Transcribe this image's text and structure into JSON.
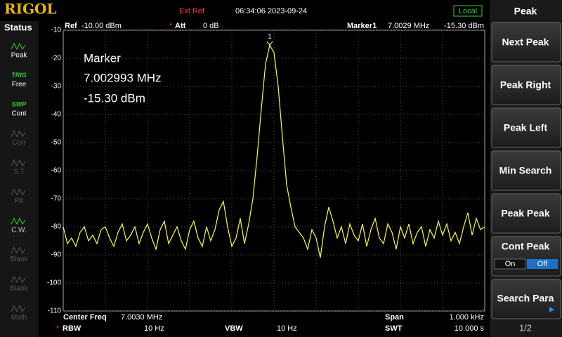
{
  "header": {
    "brand": "RIGOL",
    "ext_ref": "Ext Ref",
    "datetime": "06:34:06 2023-09-24",
    "remote": "Local"
  },
  "status": {
    "title": "Status",
    "items": [
      {
        "label": "Peak"
      },
      {
        "top": "TRIG",
        "label": "Free"
      },
      {
        "top": "SWP",
        "label": "Cont"
      },
      {
        "label": "Corr"
      },
      {
        "label": "S.T"
      },
      {
        "label": "PA"
      },
      {
        "label": "C.W."
      },
      {
        "label": "Blank"
      },
      {
        "label": "Blank"
      },
      {
        "label": "Math"
      }
    ]
  },
  "settings": {
    "ref_label": "Ref",
    "ref": "-10.00 dBm",
    "att_star": "*",
    "att_label": "Att",
    "att": "0 dB",
    "marker_label": "Marker1",
    "marker_freq": "7.0029 MHz",
    "marker_amp": "-15.30 dBm"
  },
  "marker_box": {
    "title": "Marker",
    "freq": "7.002993 MHz",
    "amp": "-15.30 dBm"
  },
  "footer": {
    "center_label": "Center Freq",
    "center": "7.0030 MHz",
    "span_label": "Span",
    "span": "1.000 kHz",
    "rbw_star": "*",
    "rbw_label": "RBW",
    "rbw": "10 Hz",
    "vbw_label": "VBW",
    "vbw": "10 Hz",
    "swt_label": "SWT",
    "swt": "10.000 s"
  },
  "menu": {
    "title": "Peak",
    "buttons": [
      "Next Peak",
      "Peak Right",
      "Peak Left",
      "Min Search",
      "Peak Peak"
    ],
    "cont_peak": {
      "label": "Cont Peak",
      "on": "On",
      "off": "Off"
    },
    "search_para": "Search Para",
    "page": "1/2"
  },
  "chart_data": {
    "type": "line",
    "color": "#ffff33",
    "marker_label": "1",
    "values": [
      -80,
      -86,
      -84,
      -87,
      -82,
      -80,
      -85,
      -83,
      -86,
      -81,
      -80,
      -84,
      -87,
      -82,
      -79,
      -85,
      -83,
      -80,
      -86,
      -82,
      -79,
      -84,
      -88,
      -81,
      -78,
      -86,
      -83,
      -80,
      -85,
      -88,
      -81,
      -78,
      -84,
      -87,
      -80,
      -85,
      -81,
      -74,
      -71,
      -80,
      -87,
      -84,
      -77,
      -86,
      -79,
      -70,
      -55,
      -38,
      -22,
      -15.3,
      -18,
      -30,
      -48,
      -65,
      -73,
      -80,
      -82,
      -84,
      -88,
      -81,
      -84,
      -91,
      -80,
      -73,
      -78,
      -84,
      -80,
      -86,
      -79,
      -83,
      -85,
      -79,
      -87,
      -81,
      -77,
      -84,
      -86,
      -79,
      -82,
      -88,
      -80,
      -84,
      -79,
      -86,
      -82,
      -80,
      -87,
      -81,
      -84,
      -78,
      -83,
      -79,
      -85,
      -82,
      -86,
      -80,
      -75,
      -83,
      -77,
      -81,
      -80
    ],
    "ylim": [
      -110,
      -10
    ],
    "yticks": [
      -10,
      -20,
      -30,
      -40,
      -50,
      -60,
      -70,
      -80,
      -90,
      -100,
      -110
    ],
    "grid": true
  }
}
